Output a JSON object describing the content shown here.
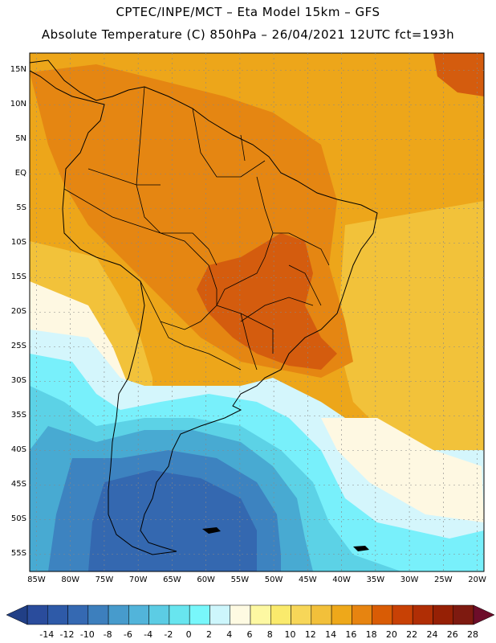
{
  "header": {
    "line1": "CPTEC/INPE/MCT –  Eta Model 15km – GFS",
    "line2": "Absolute Temperature (C) 850hPa – 26/04/2021 12UTC fct=193h"
  },
  "axes": {
    "lat_labels": [
      "15N",
      "10N",
      "5N",
      "EQ",
      "5S",
      "10S",
      "15S",
      "20S",
      "25S",
      "30S",
      "35S",
      "40S",
      "45S",
      "50S",
      "55S"
    ],
    "lon_labels": [
      "85W",
      "80W",
      "75W",
      "70W",
      "65W",
      "60W",
      "55W",
      "50W",
      "45W",
      "40W",
      "35W",
      "30W",
      "25W",
      "20W"
    ]
  },
  "colorbar": {
    "labels": [
      "-14",
      "-12",
      "-10",
      "-8",
      "-6",
      "-4",
      "-2",
      "0",
      "2",
      "4",
      "6",
      "8",
      "10",
      "12",
      "14",
      "16",
      "18",
      "20",
      "22",
      "24",
      "26",
      "28"
    ],
    "colors": [
      "#2a4c9c",
      "#2e5aa8",
      "#3569b2",
      "#3d7fbd",
      "#479bcc",
      "#52b4da",
      "#5ccce4",
      "#68e5ef",
      "#78f7fb",
      "#cdf6fc",
      "#fefae2",
      "#fdf8a2",
      "#faea6c",
      "#f7d658",
      "#f2c03a",
      "#eea81a",
      "#e78410",
      "#d95c05",
      "#c84105",
      "#b02e05",
      "#962005",
      "#7e1a10"
    ],
    "low_arrow_color": "#213f86",
    "high_arrow_color": "#6d0d2a"
  },
  "map_colors": {
    "warm": "#eda61a",
    "orange": "#e58612",
    "hot": "#d45c0e",
    "yellow": "#f2c23a",
    "lightyellow": "#fae36c",
    "cream": "#fef8e2",
    "palecyan": "#d4f6fc",
    "cyan": "#78f0fb",
    "midcyan": "#5cd2e6",
    "blue1": "#48aad2",
    "blue2": "#3d83c0",
    "blue3": "#3468b0"
  }
}
